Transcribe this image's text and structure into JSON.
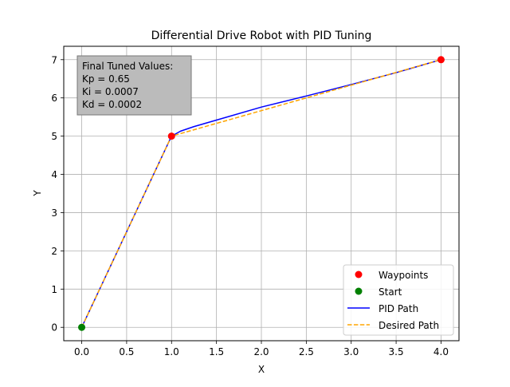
{
  "chart_data": {
    "type": "line",
    "title": "Differential Drive Robot with PID Tuning",
    "xlabel": "X",
    "ylabel": "Y",
    "xlim": [
      -0.2,
      4.2
    ],
    "ylim": [
      -0.35,
      7.35
    ],
    "xticks": [
      0.0,
      0.5,
      1.0,
      1.5,
      2.0,
      2.5,
      3.0,
      3.5,
      4.0
    ],
    "xtick_labels": [
      "0.0",
      "0.5",
      "1.0",
      "1.5",
      "2.0",
      "2.5",
      "3.0",
      "3.5",
      "4.0"
    ],
    "yticks": [
      0,
      1,
      2,
      3,
      4,
      5,
      6,
      7
    ],
    "ytick_labels": [
      "0",
      "1",
      "2",
      "3",
      "4",
      "5",
      "6",
      "7"
    ],
    "grid": true,
    "legend_position": "lower-right",
    "series": [
      {
        "name": "Waypoints",
        "kind": "scatter",
        "color": "#ff0000",
        "points": [
          [
            1,
            5
          ],
          [
            4,
            7
          ]
        ]
      },
      {
        "name": "Start",
        "kind": "scatter",
        "color": "#008000",
        "points": [
          [
            0,
            0
          ]
        ]
      },
      {
        "name": "PID Path",
        "kind": "line",
        "style": "solid",
        "color": "#0000ff",
        "points": [
          [
            0,
            0
          ],
          [
            0.5,
            2.5
          ],
          [
            1.0,
            5.0
          ],
          [
            1.1,
            5.13
          ],
          [
            1.25,
            5.25
          ],
          [
            1.5,
            5.42
          ],
          [
            2.0,
            5.76
          ],
          [
            2.5,
            6.05
          ],
          [
            3.0,
            6.35
          ],
          [
            3.5,
            6.66
          ],
          [
            4.0,
            7.0
          ]
        ]
      },
      {
        "name": "Desired Path",
        "kind": "line",
        "style": "dashed",
        "color": "#ffa500",
        "points": [
          [
            0,
            0
          ],
          [
            1,
            5
          ],
          [
            4,
            7
          ]
        ]
      }
    ],
    "annotation": {
      "lines": [
        "Final Tuned Values:",
        "Kp = 0.65",
        "Ki = 0.0007",
        "Kd = 0.0002"
      ],
      "position": "top-left",
      "background": "#bbbbbb"
    }
  }
}
